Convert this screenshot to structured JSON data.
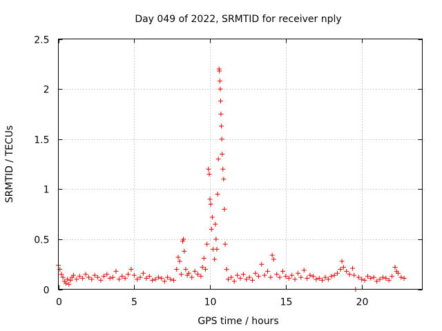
{
  "chart_data": {
    "type": "scatter",
    "title": "Day 049 of 2022, SRMTID for receiver nply",
    "xlabel": "GPS time / hours",
    "ylabel": "SRMTID / TECUs",
    "xlim": [
      0,
      24
    ],
    "ylim": [
      0,
      2.5
    ],
    "xticks": [
      0,
      5,
      10,
      15,
      20
    ],
    "xtick_labels": [
      "0",
      "5",
      "10",
      "15",
      "20"
    ],
    "yticks": [
      0,
      0.5,
      1,
      1.5,
      2,
      2.5
    ],
    "ytick_labels": [
      "0",
      "0.5",
      "1",
      "1.5",
      "2",
      "2.5"
    ],
    "grid": true,
    "marker": "plus",
    "color": "#e00000",
    "series": [
      {
        "name": "SRMTID",
        "x": [
          0.0,
          0.1,
          0.2,
          0.3,
          0.4,
          0.5,
          0.6,
          0.7,
          0.8,
          0.9,
          1.0,
          1.2,
          1.4,
          1.6,
          1.8,
          2.0,
          2.2,
          2.4,
          2.6,
          2.8,
          3.0,
          3.2,
          3.4,
          3.6,
          3.8,
          4.0,
          4.2,
          4.4,
          4.6,
          4.8,
          5.0,
          5.2,
          5.4,
          5.6,
          5.8,
          6.0,
          6.2,
          6.4,
          6.6,
          6.8,
          7.0,
          7.2,
          7.4,
          7.6,
          7.8,
          7.9,
          8.0,
          8.1,
          8.2,
          8.25,
          8.3,
          8.4,
          8.5,
          8.6,
          8.8,
          9.0,
          9.2,
          9.4,
          9.5,
          9.6,
          9.7,
          9.8,
          9.9,
          9.95,
          10.0,
          10.05,
          10.1,
          10.15,
          10.2,
          10.3,
          10.35,
          10.4,
          10.45,
          10.5,
          10.55,
          10.6,
          10.62,
          10.65,
          10.68,
          10.7,
          10.72,
          10.75,
          10.78,
          10.8,
          10.85,
          10.9,
          10.95,
          11.0,
          11.1,
          11.2,
          11.4,
          11.6,
          11.8,
          12.0,
          12.2,
          12.4,
          12.6,
          12.8,
          13.0,
          13.2,
          13.4,
          13.6,
          13.8,
          14.0,
          14.1,
          14.2,
          14.4,
          14.6,
          14.8,
          15.0,
          15.2,
          15.4,
          15.6,
          15.8,
          16.0,
          16.2,
          16.4,
          16.6,
          16.8,
          17.0,
          17.2,
          17.4,
          17.6,
          17.8,
          18.0,
          18.2,
          18.4,
          18.6,
          18.7,
          18.8,
          19.0,
          19.2,
          19.4,
          19.5,
          19.6,
          19.8,
          20.0,
          20.2,
          20.4,
          20.6,
          20.8,
          21.0,
          21.2,
          21.4,
          21.6,
          21.8,
          22.0,
          22.2,
          22.3,
          22.4,
          22.6,
          22.8
        ],
        "y": [
          0.24,
          0.2,
          0.15,
          0.12,
          0.08,
          0.06,
          0.1,
          0.05,
          0.09,
          0.12,
          0.14,
          0.1,
          0.13,
          0.11,
          0.15,
          0.12,
          0.1,
          0.14,
          0.12,
          0.09,
          0.13,
          0.15,
          0.11,
          0.12,
          0.18,
          0.1,
          0.13,
          0.11,
          0.15,
          0.2,
          0.14,
          0.1,
          0.12,
          0.16,
          0.11,
          0.13,
          0.09,
          0.1,
          0.12,
          0.11,
          0.08,
          0.12,
          0.1,
          0.09,
          0.2,
          0.32,
          0.28,
          0.15,
          0.48,
          0.5,
          0.38,
          0.2,
          0.14,
          0.16,
          0.12,
          0.18,
          0.15,
          0.13,
          0.22,
          0.31,
          0.2,
          0.45,
          1.2,
          1.15,
          0.9,
          0.85,
          0.6,
          0.72,
          0.4,
          0.3,
          0.65,
          0.5,
          0.4,
          0.95,
          1.3,
          2.2,
          2.18,
          2.08,
          2.0,
          1.88,
          1.75,
          1.63,
          1.5,
          1.35,
          1.2,
          1.1,
          0.8,
          0.45,
          0.2,
          0.1,
          0.12,
          0.08,
          0.14,
          0.11,
          0.15,
          0.1,
          0.12,
          0.09,
          0.16,
          0.13,
          0.25,
          0.14,
          0.18,
          0.12,
          0.34,
          0.3,
          0.15,
          0.12,
          0.18,
          0.13,
          0.11,
          0.14,
          0.1,
          0.16,
          0.12,
          0.19,
          0.11,
          0.14,
          0.13,
          0.1,
          0.11,
          0.09,
          0.12,
          0.1,
          0.13,
          0.14,
          0.16,
          0.2,
          0.28,
          0.22,
          0.18,
          0.15,
          0.21,
          0.14,
          0.0,
          0.12,
          0.1,
          0.09,
          0.13,
          0.11,
          0.12,
          0.08,
          0.1,
          0.12,
          0.11,
          0.09,
          0.13,
          0.22,
          0.18,
          0.16,
          0.12,
          0.11
        ]
      }
    ]
  }
}
